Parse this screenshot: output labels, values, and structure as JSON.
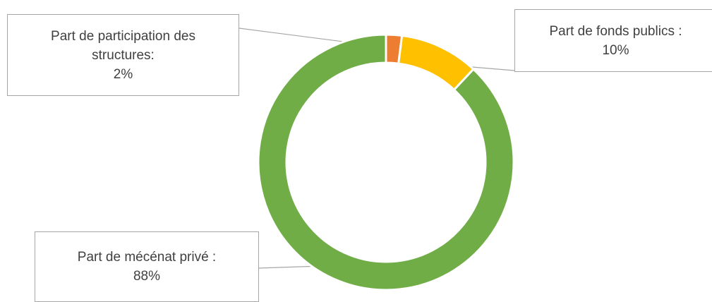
{
  "chart_data": {
    "type": "pie",
    "variant": "donut",
    "title": "",
    "slices": [
      {
        "label_lines": [
          "Part de participation des",
          "structures:"
        ],
        "value_text": "2%",
        "value": 2,
        "color": "#ed7d31"
      },
      {
        "label_lines": [
          "Part de fonds publics :"
        ],
        "value_text": "10%",
        "value": 10,
        "color": "#ffc000"
      },
      {
        "label_lines": [
          "Part de mécénat privé :"
        ],
        "value_text": "88%",
        "value": 88,
        "color": "#70ad47"
      }
    ],
    "legend": "none"
  }
}
